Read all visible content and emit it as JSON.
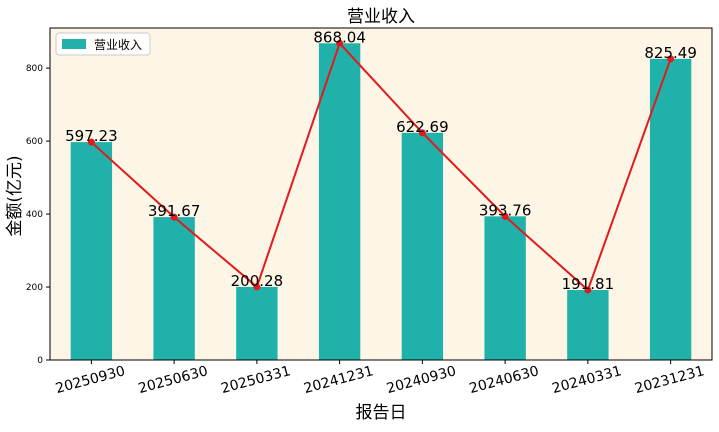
{
  "chart_data": {
    "type": "bar",
    "title": "营业收入",
    "xlabel": "报告日",
    "ylabel": "金额(亿元)",
    "categories": [
      "20250930",
      "20250630",
      "20250331",
      "20241231",
      "20240930",
      "20240630",
      "20240331",
      "20231231"
    ],
    "series": [
      {
        "name": "营业收入",
        "values": [
          597.23,
          391.67,
          200.28,
          868.04,
          622.69,
          393.76,
          191.81,
          825.49
        ],
        "labels": [
          "597.23",
          "391.67",
          "200.28",
          "868.04",
          "622.69",
          "393.76",
          "191.81",
          "825.49"
        ]
      }
    ],
    "overlay_line": true,
    "ylim": [
      0,
      910
    ],
    "yticks": [
      0,
      200,
      400,
      600,
      800
    ],
    "grid": false,
    "legend": "upper-left",
    "colors": {
      "bar": "#20b2aa",
      "line": "#e31a1c",
      "plot_background": "#fdf5e6",
      "frame": "#000000"
    }
  }
}
